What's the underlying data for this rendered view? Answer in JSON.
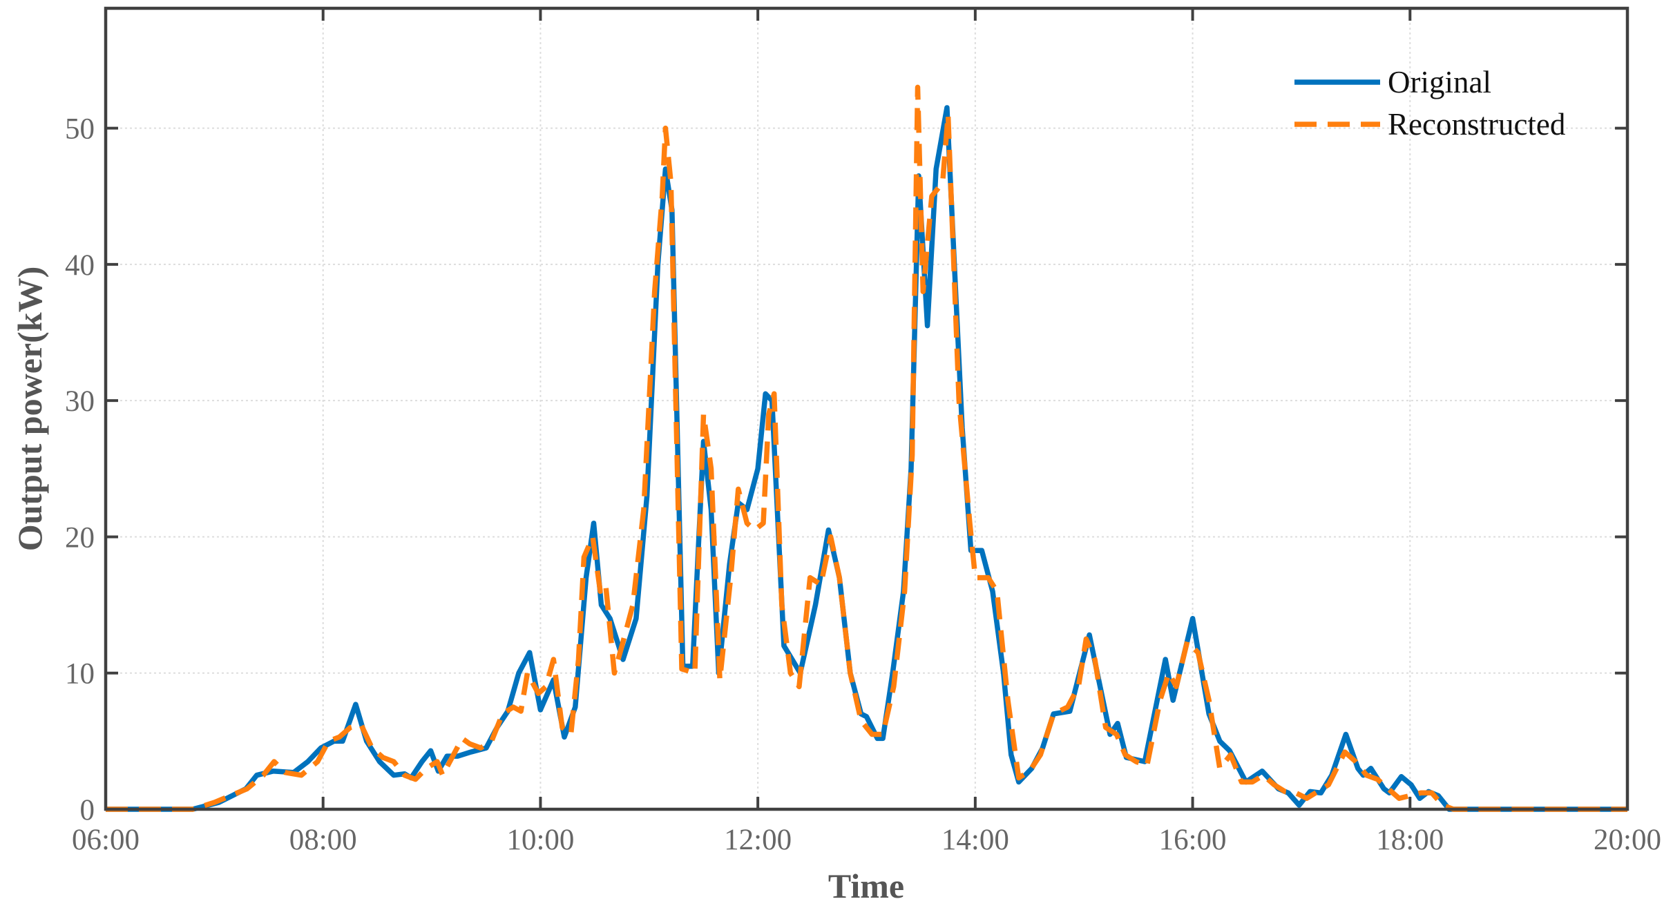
{
  "chart_data": {
    "type": "line",
    "x_label": "Time",
    "y_label": "Output power(kW)",
    "xlim": [
      6,
      20
    ],
    "xticks": [
      {
        "value": 6,
        "label": "06:00"
      },
      {
        "value": 8,
        "label": "08:00"
      },
      {
        "value": 10,
        "label": "10:00"
      },
      {
        "value": 12,
        "label": "12:00"
      },
      {
        "value": 14,
        "label": "14:00"
      },
      {
        "value": 16,
        "label": "16:00"
      },
      {
        "value": 18,
        "label": "18:00"
      },
      {
        "value": 20,
        "label": "20:00"
      }
    ],
    "ylim": [
      0,
      58.8
    ],
    "yticks": [
      0,
      10,
      20,
      30,
      40,
      50
    ],
    "grid": true,
    "legend": "upper right",
    "series": [
      {
        "name": "Original",
        "color": "#0072bd",
        "style": "solid",
        "x": [
          6,
          6.8,
          7.04,
          7.29,
          7.39,
          7.54,
          7.73,
          7.86,
          7.98,
          8.1,
          8.18,
          8.3,
          8.4,
          8.52,
          8.65,
          8.75,
          8.81,
          8.91,
          8.99,
          9.06,
          9.14,
          9.24,
          9.36,
          9.5,
          9.6,
          9.7,
          9.8,
          9.9,
          10.0,
          10.12,
          10.22,
          10.32,
          10.42,
          10.49,
          10.56,
          10.64,
          10.76,
          10.88,
          10.98,
          11.08,
          11.15,
          11.21,
          11.31,
          11.4,
          11.5,
          11.57,
          11.64,
          11.74,
          11.82,
          11.9,
          12.0,
          12.07,
          12.13,
          12.24,
          12.39,
          12.53,
          12.65,
          12.75,
          12.85,
          12.95,
          13.0,
          13.1,
          13.15,
          13.24,
          13.34,
          13.41,
          13.48,
          13.56,
          13.64,
          13.74,
          13.82,
          13.88,
          13.96,
          14.06,
          14.16,
          14.26,
          14.33,
          14.4,
          14.52,
          14.62,
          14.72,
          14.87,
          15.05,
          15.24,
          15.31,
          15.39,
          15.56,
          15.75,
          15.82,
          16.0,
          16.15,
          16.25,
          16.34,
          16.49,
          16.64,
          16.79,
          16.88,
          16.98,
          17.08,
          17.18,
          17.28,
          17.41,
          17.52,
          17.57,
          17.64,
          17.76,
          17.81,
          17.92,
          18.01,
          18.09,
          18.17,
          18.26,
          18.36,
          20
        ],
        "values": [
          0,
          0,
          0.5,
          1.5,
          2.5,
          2.8,
          2.7,
          3.5,
          4.5,
          5,
          5,
          7.7,
          5,
          3.5,
          2.5,
          2.6,
          2.3,
          3.5,
          4.3,
          2.8,
          3.9,
          3.9,
          4.2,
          4.5,
          6,
          7.2,
          10,
          11.5,
          7.3,
          9.5,
          5.3,
          7.5,
          17,
          21,
          15,
          14,
          11,
          14,
          23,
          40,
          47,
          44,
          10.5,
          10.5,
          27,
          22,
          10,
          18,
          22.5,
          22,
          25,
          30.5,
          30,
          12,
          10,
          15,
          20.5,
          17,
          10,
          7,
          6.8,
          5.2,
          5.2,
          10,
          16,
          25,
          46.5,
          35.5,
          47,
          51.5,
          38,
          28,
          19,
          19,
          16,
          10,
          4,
          2,
          3,
          4.5,
          7,
          7.2,
          12.8,
          5.5,
          6.3,
          3.8,
          3.5,
          11,
          8,
          14,
          7,
          5,
          4.3,
          2,
          2.8,
          1.5,
          1.2,
          0.3,
          1.3,
          1.2,
          2.5,
          5.5,
          3,
          2.5,
          3,
          1.5,
          1.2,
          2.4,
          1.8,
          0.8,
          1.3,
          1,
          0,
          0
        ]
      },
      {
        "name": "Reconstructed",
        "color": "#ff7f0e",
        "style": "dashed",
        "x": [
          6,
          6.8,
          7.0,
          7.3,
          7.45,
          7.55,
          7.65,
          7.8,
          7.95,
          8.05,
          8.15,
          8.25,
          8.35,
          8.45,
          8.55,
          8.65,
          8.75,
          8.85,
          8.95,
          9.05,
          9.1,
          9.2,
          9.28,
          9.35,
          9.45,
          9.55,
          9.65,
          9.75,
          9.82,
          9.88,
          9.98,
          10.05,
          10.12,
          10.2,
          10.28,
          10.35,
          10.4,
          10.48,
          10.55,
          10.6,
          10.68,
          10.75,
          10.85,
          10.95,
          11.05,
          11.12,
          11.15,
          11.2,
          11.3,
          11.42,
          11.5,
          11.57,
          11.65,
          11.75,
          11.82,
          11.9,
          11.97,
          12.05,
          12.1,
          12.15,
          12.22,
          12.3,
          12.38,
          12.48,
          12.58,
          12.67,
          12.75,
          12.85,
          12.95,
          13.05,
          13.15,
          13.25,
          13.35,
          13.42,
          13.47,
          13.52,
          13.6,
          13.7,
          13.75,
          13.85,
          13.95,
          14.0,
          14.12,
          14.2,
          14.3,
          14.4,
          14.5,
          14.6,
          14.72,
          14.85,
          14.95,
          15.02,
          15.1,
          15.2,
          15.3,
          15.38,
          15.48,
          15.58,
          15.7,
          15.78,
          15.85,
          15.95,
          16.05,
          16.15,
          16.25,
          16.35,
          16.45,
          16.55,
          16.65,
          16.75,
          16.85,
          16.95,
          17.05,
          17.15,
          17.25,
          17.4,
          17.5,
          17.6,
          17.7,
          17.8,
          17.9,
          18.0,
          18.1,
          18.2,
          18.3,
          18.4,
          20
        ],
        "values": [
          0,
          0,
          0.5,
          1.5,
          2.5,
          3.5,
          2.7,
          2.5,
          3.5,
          5,
          5.3,
          6,
          6.2,
          4.5,
          3.8,
          3.5,
          2.5,
          2.2,
          3,
          3.5,
          2.5,
          4,
          5.2,
          4.8,
          4.5,
          5,
          7,
          7.5,
          7.2,
          10,
          8.5,
          9,
          11,
          6,
          5.5,
          11,
          18.5,
          20,
          16,
          16.5,
          10,
          12,
          15,
          22,
          38,
          45,
          50,
          46,
          10.3,
          10,
          29,
          25,
          9.5,
          17,
          23.5,
          21,
          20.5,
          21,
          29,
          30.5,
          15,
          10,
          9,
          17,
          16.5,
          20,
          17,
          10,
          6.5,
          5.5,
          5.5,
          9,
          16,
          26,
          53,
          38,
          45,
          46,
          51,
          30,
          21,
          17,
          17,
          16,
          8,
          2.3,
          2.8,
          4,
          7,
          7.5,
          9,
          12.5,
          11,
          6,
          5.5,
          4,
          3.5,
          3.2,
          8,
          10,
          9,
          12.3,
          11.5,
          8,
          3,
          4,
          2,
          2,
          2.5,
          1.8,
          1.3,
          1.2,
          0.8,
          1.3,
          1.8,
          4.2,
          3.5,
          2.5,
          2.2,
          1.5,
          0.8,
          1,
          1.2,
          1.2,
          0.3,
          0,
          0
        ]
      }
    ]
  }
}
